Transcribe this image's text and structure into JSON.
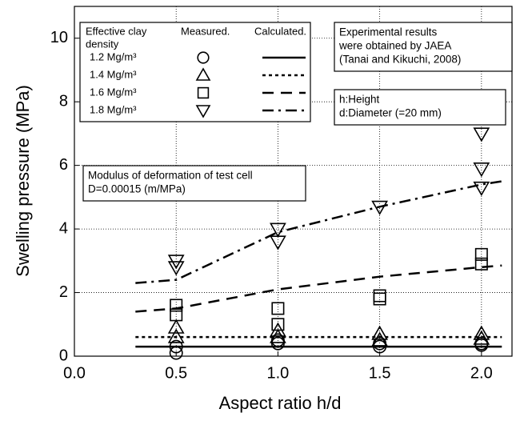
{
  "chart_data": {
    "type": "scatter",
    "x_label": "Aspect ratio h/d",
    "y_label": "Swelling pressure (MPa)",
    "xlim": [
      0,
      2.15
    ],
    "ylim": [
      0,
      11
    ],
    "xticks": [
      {
        "value": 0,
        "label": "0.0"
      },
      0.5,
      {
        "value": 1,
        "label": "1.0"
      },
      1.5,
      {
        "value": 2,
        "label": "2.0"
      }
    ],
    "yticks": [
      0,
      2,
      4,
      6,
      8,
      10
    ],
    "grid": true,
    "legend_headers": [
      "Effective clay",
      "density",
      "Measured.",
      "Calculated."
    ],
    "series": [
      {
        "name": "1.2 Mg/m³",
        "color": "#000000",
        "marker": "circle",
        "dash": "solid",
        "x": [
          0.5,
          0.5,
          1,
          1,
          1.5,
          1.5,
          2,
          2
        ],
        "values": [
          0.1,
          0.3,
          0.4,
          0.5,
          0.3,
          0.4,
          0.35,
          0.4
        ],
        "line_x": [
          0.3,
          2.1
        ],
        "line_values": [
          0.3,
          0.3
        ]
      },
      {
        "name": "1.4 Mg/m³",
        "color": "#000000",
        "marker": "triangle",
        "dash": "short",
        "x": [
          0.5,
          0.5,
          1,
          1,
          1.5,
          1.5,
          2,
          2
        ],
        "values": [
          0.6,
          0.9,
          0.6,
          0.8,
          0.5,
          0.7,
          0.55,
          0.7
        ],
        "line_x": [
          0.3,
          2.1
        ],
        "line_values": [
          0.6,
          0.6
        ]
      },
      {
        "name": "1.6 Mg/m³",
        "color": "#000000",
        "marker": "square",
        "dash": "long",
        "x": [
          0.5,
          0.5,
          1,
          1,
          1.5,
          1.5,
          2,
          2
        ],
        "values": [
          1.3,
          1.6,
          1.0,
          1.5,
          1.8,
          1.9,
          2.9,
          3.2
        ],
        "line_x": [
          0.3,
          0.5,
          1,
          1.5,
          2,
          2.1
        ],
        "line_values": [
          1.4,
          1.5,
          2.1,
          2.5,
          2.8,
          2.85
        ]
      },
      {
        "name": "1.8 Mg/m³",
        "color": "#000000",
        "marker": "triangle-down",
        "dash": "dashdot",
        "x": [
          0.5,
          0.5,
          1,
          1,
          1.5,
          2,
          2,
          2
        ],
        "values": [
          2.8,
          3.0,
          3.6,
          4.0,
          4.7,
          5.3,
          5.9,
          7.0
        ],
        "line_x": [
          0.3,
          0.5,
          1,
          1.5,
          2,
          2.1
        ],
        "line_values": [
          2.3,
          2.4,
          3.9,
          4.7,
          5.4,
          5.5
        ]
      }
    ],
    "annotations": [
      [
        "Experimental results",
        "were obtained by JAEA",
        " (Tanai and Kikuchi, 2008)"
      ],
      [
        "h:Height",
        "d:Diameter (=20 mm)"
      ],
      [
        "Modulus of deformation of test cell",
        "D=0.00015 (m/MPa)"
      ]
    ]
  }
}
